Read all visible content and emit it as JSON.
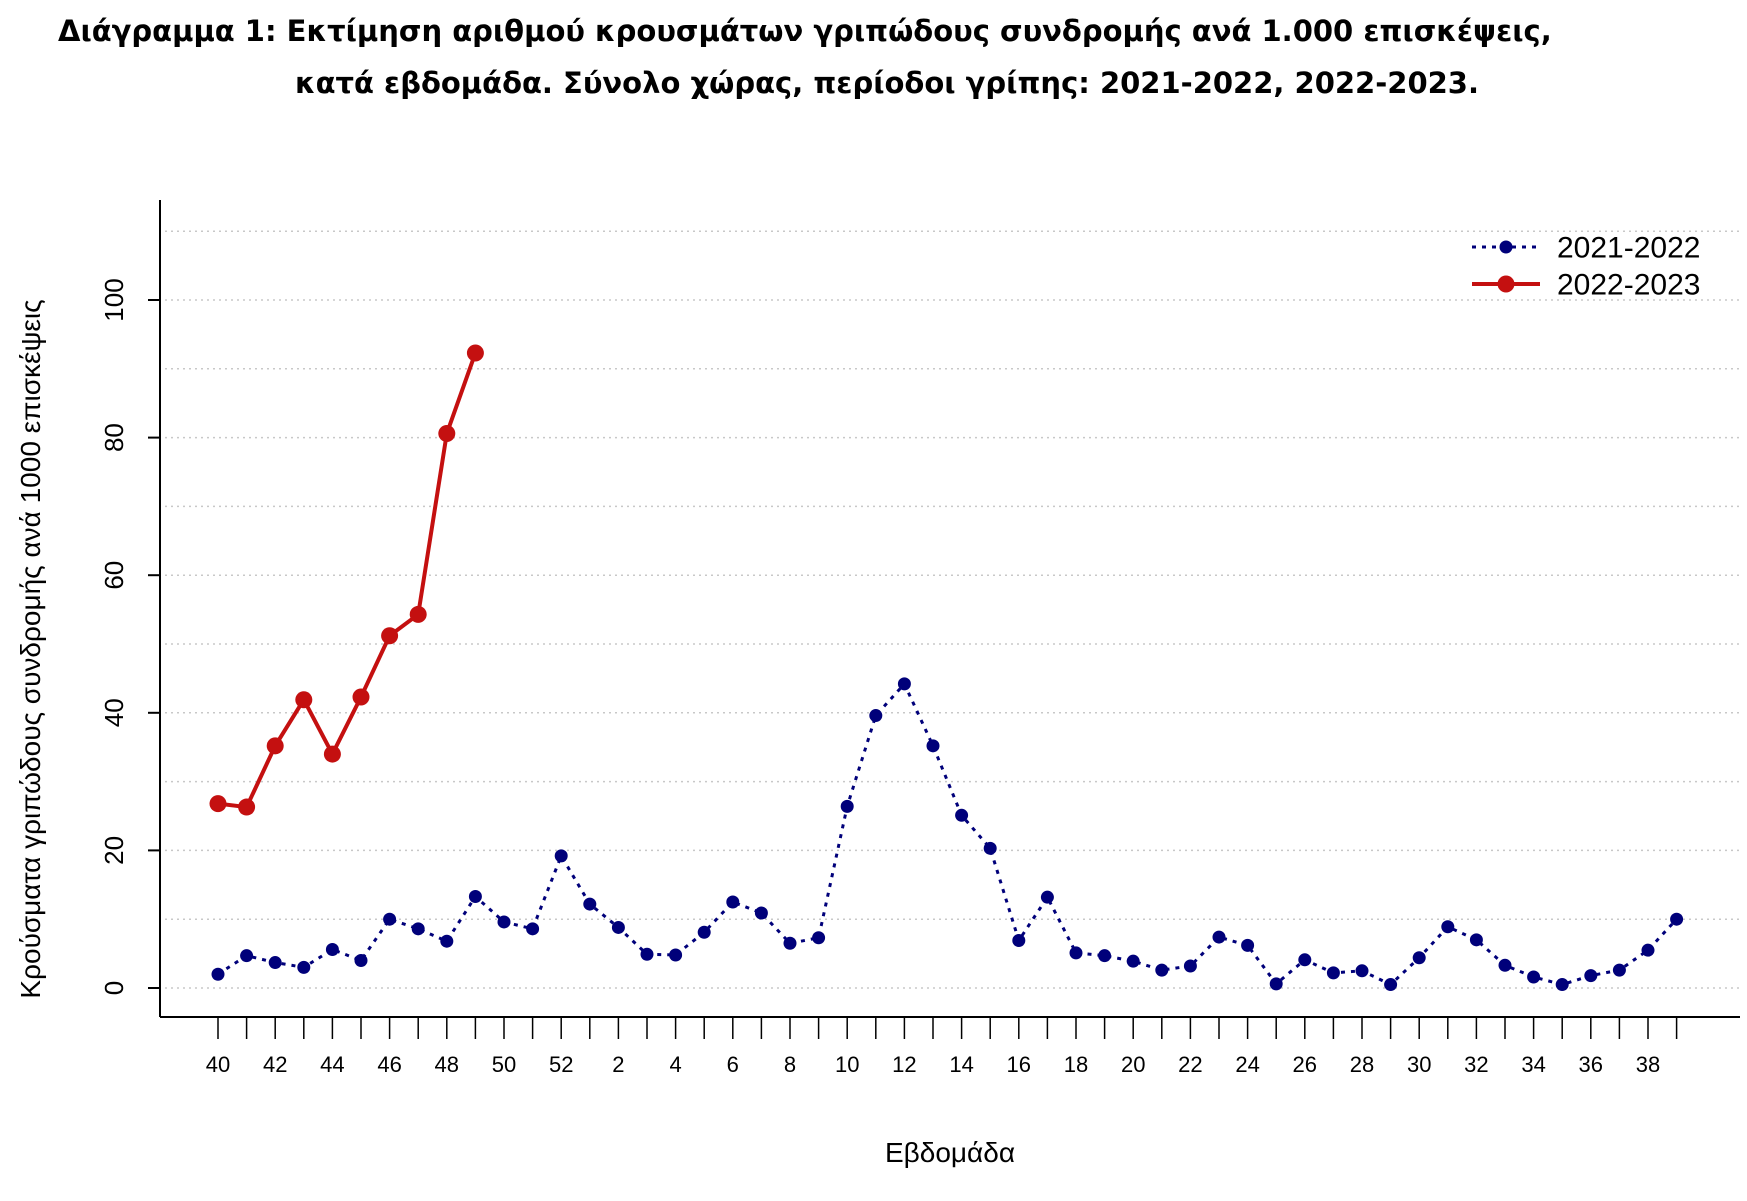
{
  "title": {
    "line1": "Διάγραμμα 1: Εκτίμηση αριθμού κρουσμάτων γριπώδους συνδρομής ανά 1.000 επισκέψεις,",
    "line2": "κατά εβδομάδα. Σύνολο χώρας, περίοδοι γρίπης:  2021-2022, 2022-2023."
  },
  "chart_data": {
    "type": "line",
    "xlabel": "Εβδομάδα",
    "ylabel": "Κρούσματα γριπώδους συνδρομής ανά 1000 επισκέψεις",
    "weeks": [
      40,
      41,
      42,
      43,
      44,
      45,
      46,
      47,
      48,
      49,
      50,
      51,
      52,
      1,
      2,
      3,
      4,
      5,
      6,
      7,
      8,
      9,
      10,
      11,
      12,
      13,
      14,
      15,
      16,
      17,
      18,
      19,
      20,
      21,
      22,
      23,
      24,
      25,
      26,
      27,
      28,
      29,
      30,
      31,
      32,
      33,
      34,
      35,
      36,
      37,
      38,
      39
    ],
    "x_tick_labels": [
      "40",
      "42",
      "44",
      "46",
      "48",
      "50",
      "52",
      "2",
      "4",
      "6",
      "8",
      "10",
      "12",
      "14",
      "16",
      "18",
      "20",
      "22",
      "24",
      "26",
      "28",
      "30",
      "32",
      "34",
      "36",
      "38"
    ],
    "y_ticks": [
      0,
      20,
      40,
      60,
      80,
      100
    ],
    "ylim": [
      0,
      112
    ],
    "grid": "horizontal dotted",
    "legend_position": "top-right",
    "series": [
      {
        "name": "2021-2022",
        "color": "#00007a",
        "line_style": "dotted",
        "values": [
          2.0,
          4.7,
          3.7,
          3.0,
          5.6,
          4.0,
          10.0,
          8.6,
          6.8,
          13.3,
          9.6,
          8.6,
          19.2,
          12.2,
          8.8,
          4.9,
          4.8,
          8.1,
          12.5,
          10.9,
          6.5,
          7.3,
          26.4,
          39.6,
          44.2,
          35.2,
          25.1,
          20.3,
          6.9,
          13.2,
          5.1,
          4.7,
          3.9,
          2.6,
          3.2,
          7.4,
          6.2,
          0.6,
          4.1,
          2.2,
          2.5,
          0.5,
          4.4,
          8.9,
          7.0,
          3.3,
          1.6,
          0.5,
          1.8,
          2.6,
          5.5,
          10.0
        ]
      },
      {
        "name": "2022-2023",
        "color": "#c41010",
        "line_style": "solid",
        "values": [
          26.8,
          26.3,
          35.2,
          41.9,
          34.0,
          42.3,
          51.2,
          54.3,
          80.6,
          92.3
        ]
      }
    ]
  }
}
